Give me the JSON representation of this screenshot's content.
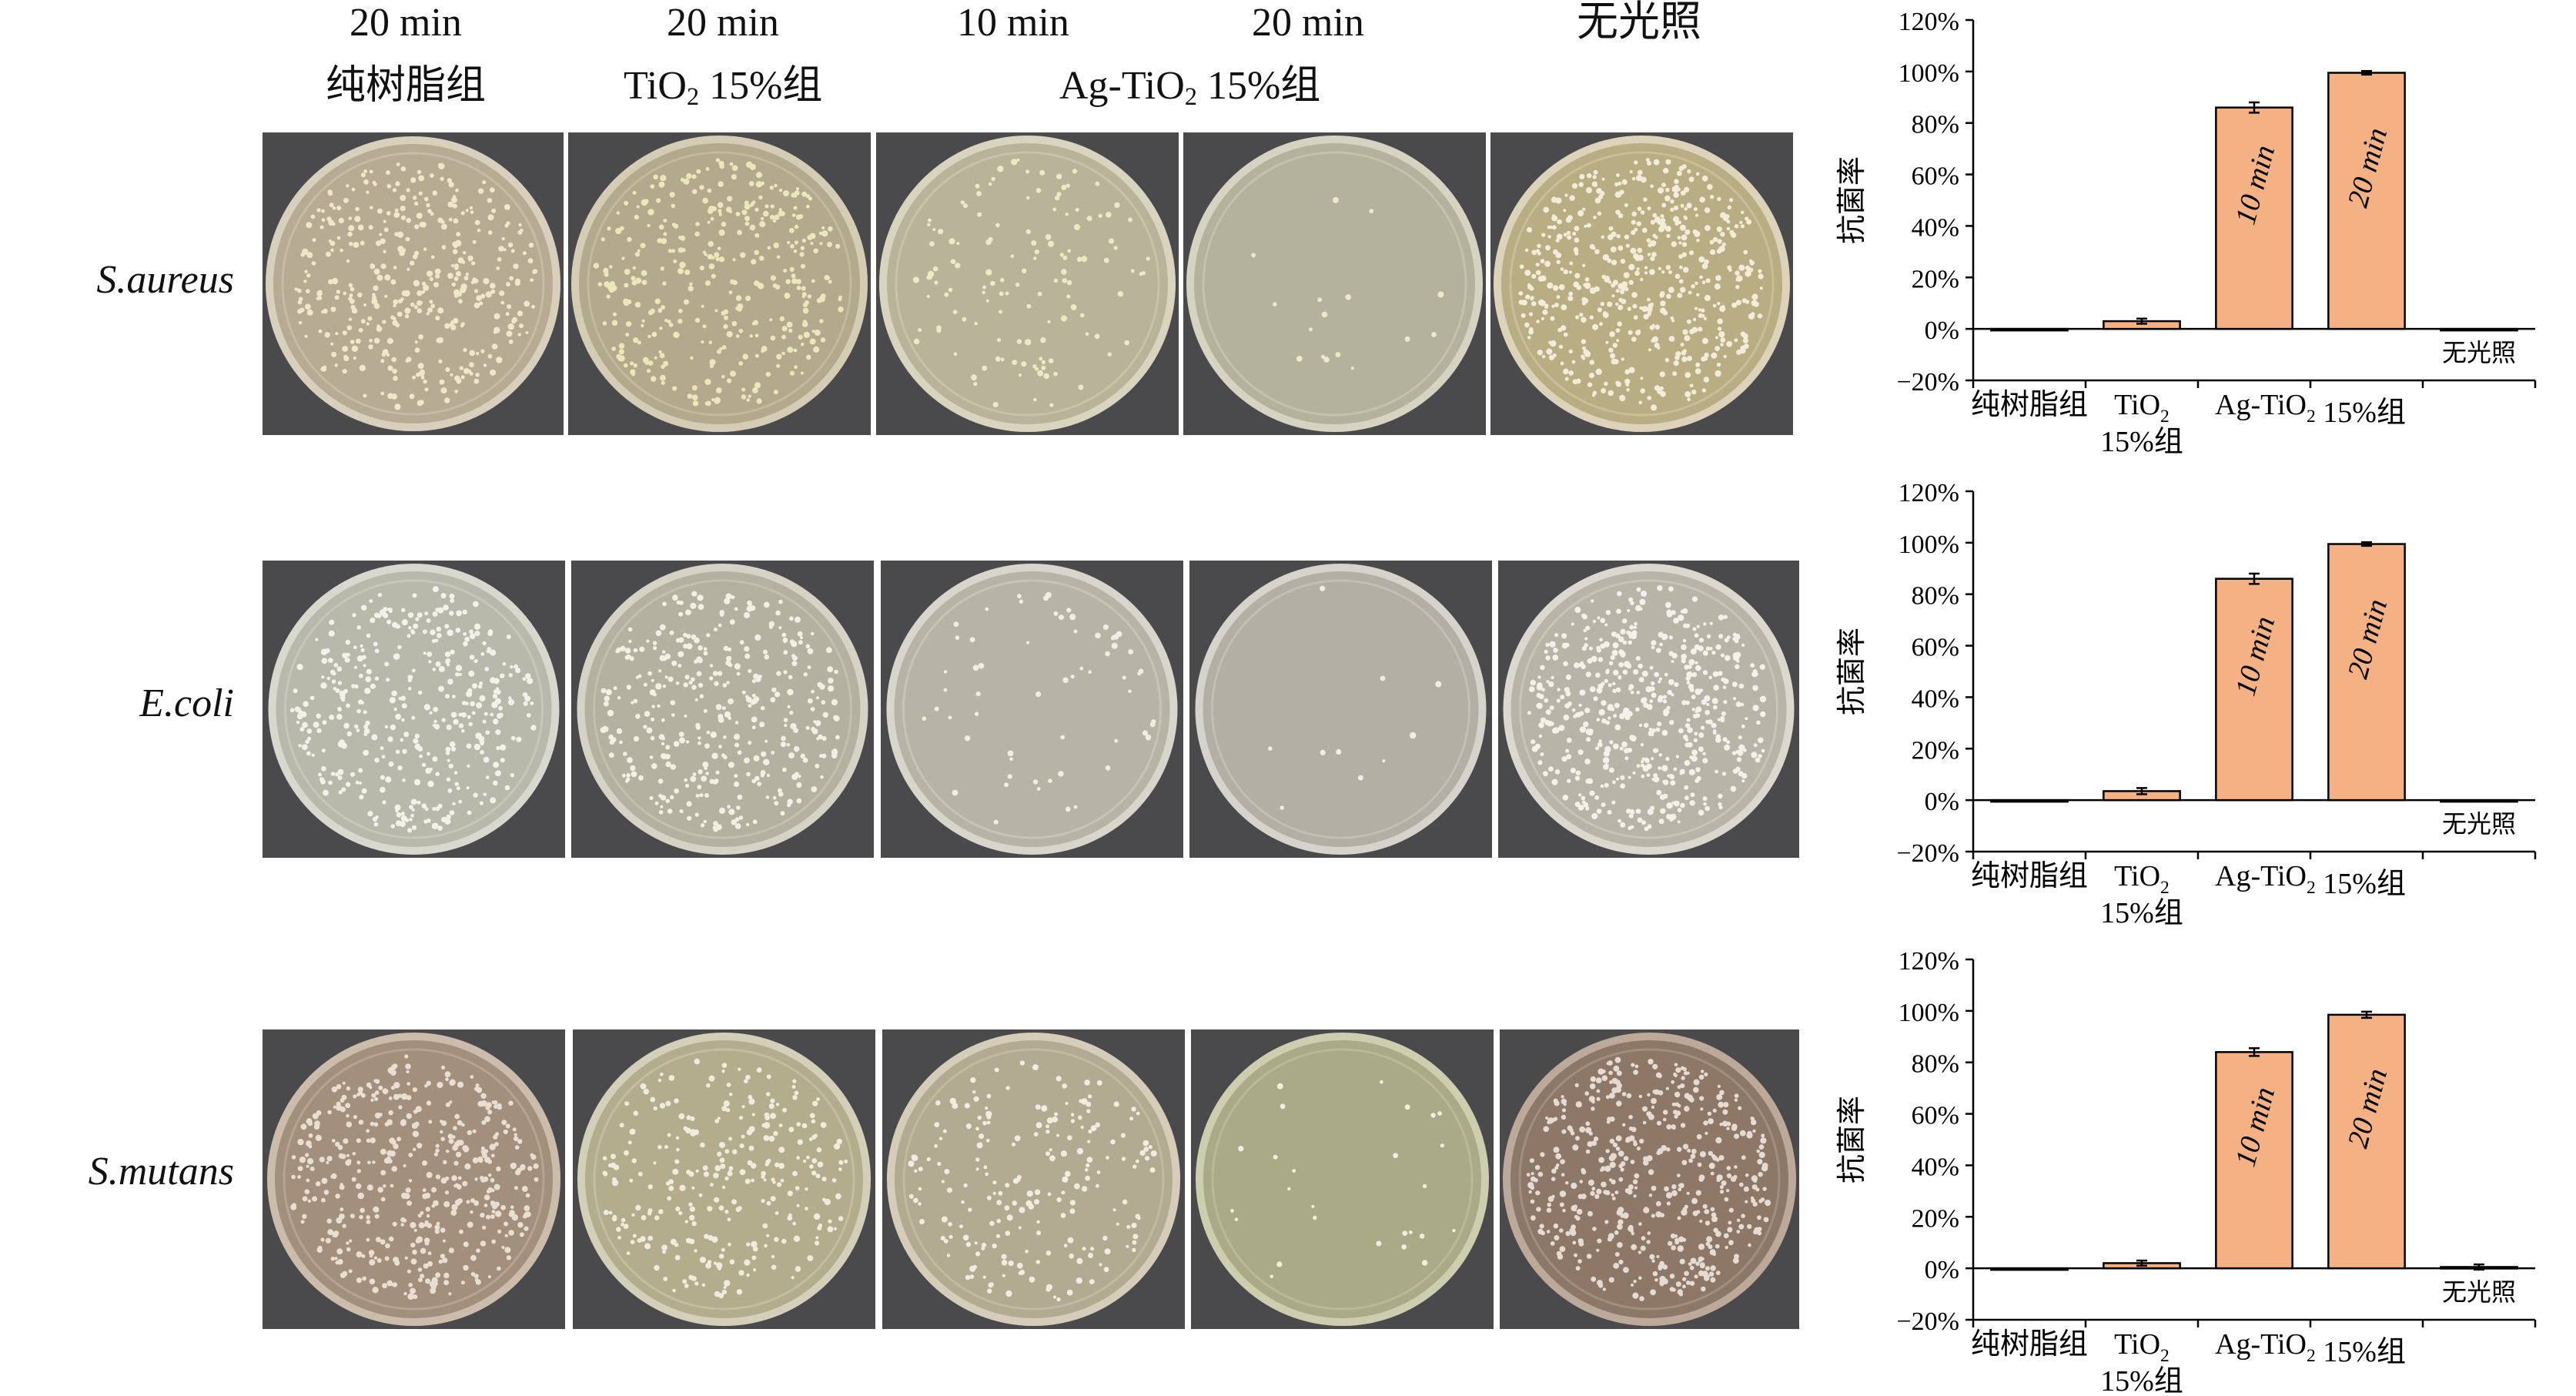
{
  "figure": {
    "headers": {
      "time_labels": [
        "20 min",
        "20 min",
        "10 min",
        "20 min",
        "无光照"
      ],
      "group_pure": "纯树脂组",
      "group_tio2_main": "TiO",
      "group_tio2_sub": "2",
      "group_tio2_rest": " 15%组",
      "group_agtio2_main": "Ag-TiO",
      "group_agtio2_sub": "2",
      "group_agtio2_rest": " 15%组"
    },
    "rows": [
      {
        "label": "S.aureus"
      },
      {
        "label": "E.coli"
      },
      {
        "label": "S.mutans"
      }
    ],
    "plates": [
      [
        {
          "agar": "#b8ab94",
          "rim": "#d8cfbd",
          "colony": "#efe8c8",
          "density": 0.75
        },
        {
          "agar": "#b3aa8d",
          "rim": "#d4ccb4",
          "colony": "#ece6bb",
          "density": 0.7
        },
        {
          "agar": "#b9b39a",
          "rim": "#d9d4bf",
          "colony": "#eee9c5",
          "density": 0.25
        },
        {
          "agar": "#b4b29c",
          "rim": "#d6d3c2",
          "colony": "#ebe8cc",
          "density": 0.03
        },
        {
          "agar": "#b9ad83",
          "rim": "#dcd3ba",
          "colony": "#f2ecd8",
          "density": 1.0
        }
      ],
      [
        {
          "agar": "#b8b8ab",
          "rim": "#d8d8cf",
          "colony": "#f3f2ea",
          "density": 0.75
        },
        {
          "agar": "#b4b1a0",
          "rim": "#d6d3c6",
          "colony": "#f2f0e4",
          "density": 0.7
        },
        {
          "agar": "#b6b4a5",
          "rim": "#d8d6cc",
          "colony": "#f0eee4",
          "density": 0.12
        },
        {
          "agar": "#b2b0a4",
          "rim": "#d5d3cb",
          "colony": "#efede6",
          "density": 0.02
        },
        {
          "agar": "#b9b4a8",
          "rim": "#dcd8cf",
          "colony": "#f4f1ea",
          "density": 1.0
        }
      ],
      [
        {
          "agar": "#a3907c",
          "rim": "#cbbcac",
          "colony": "#e9ded2",
          "density": 0.85
        },
        {
          "agar": "#b3ad8e",
          "rim": "#d4cfb8",
          "colony": "#f0ecdc",
          "density": 0.55
        },
        {
          "agar": "#b3aa92",
          "rim": "#d5cdb9",
          "colony": "#f1ecdf",
          "density": 0.4
        },
        {
          "agar": "#a9aa86",
          "rim": "#cdcdb0",
          "colony": "#efefdf",
          "density": 0.05
        },
        {
          "agar": "#8d7868",
          "rim": "#bca999",
          "colony": "#e5dbd2",
          "density": 0.95
        }
      ]
    ],
    "charts_common": {
      "ylabel": "抗菌率",
      "y_ticks": [
        "120%",
        "100%",
        "80%",
        "60%",
        "40%",
        "20%",
        "0%",
        "−20%"
      ],
      "x_labels": {
        "pure": "纯树脂组",
        "tio2_main": "TiO",
        "tio2_sub": "2",
        "tio2_second": "15%组",
        "agtio2_main": "Ag-TiO",
        "agtio2_sub": "2",
        "agtio2_rest": " 15%组"
      },
      "bar_labels": [
        "",
        "",
        "10 min",
        "20 min",
        "无光照"
      ],
      "bar_color": "#f4b183"
    }
  },
  "chart_data": [
    {
      "type": "bar",
      "title": "",
      "xlabel": "",
      "ylabel": "抗菌率",
      "ylim": [
        -20,
        120
      ],
      "categories": [
        "纯树脂组",
        "TiO2 15%组",
        "Ag-TiO2 15%组 10 min",
        "Ag-TiO2 15%组 20 min",
        "无光照"
      ],
      "values": [
        0,
        3,
        86,
        99.5,
        -0.5
      ],
      "errors": [
        0,
        1,
        2,
        0.7,
        0
      ]
    },
    {
      "type": "bar",
      "title": "",
      "xlabel": "",
      "ylabel": "抗菌率",
      "ylim": [
        -20,
        120
      ],
      "categories": [
        "纯树脂组",
        "TiO2 15%组",
        "Ag-TiO2 15%组 10 min",
        "Ag-TiO2 15%组 20 min",
        "无光照"
      ],
      "values": [
        0,
        3.5,
        86,
        99.5,
        -0.5
      ],
      "errors": [
        0,
        1.2,
        2,
        0.7,
        0
      ]
    },
    {
      "type": "bar",
      "title": "",
      "xlabel": "",
      "ylabel": "抗菌率",
      "ylim": [
        -20,
        120
      ],
      "categories": [
        "纯树脂组",
        "TiO2 15%组",
        "Ag-TiO2 15%组 10 min",
        "Ag-TiO2 15%组 20 min",
        "无光照"
      ],
      "values": [
        0,
        2,
        84,
        98.5,
        0.5
      ],
      "errors": [
        0,
        1,
        1.5,
        1.2,
        1
      ]
    }
  ]
}
